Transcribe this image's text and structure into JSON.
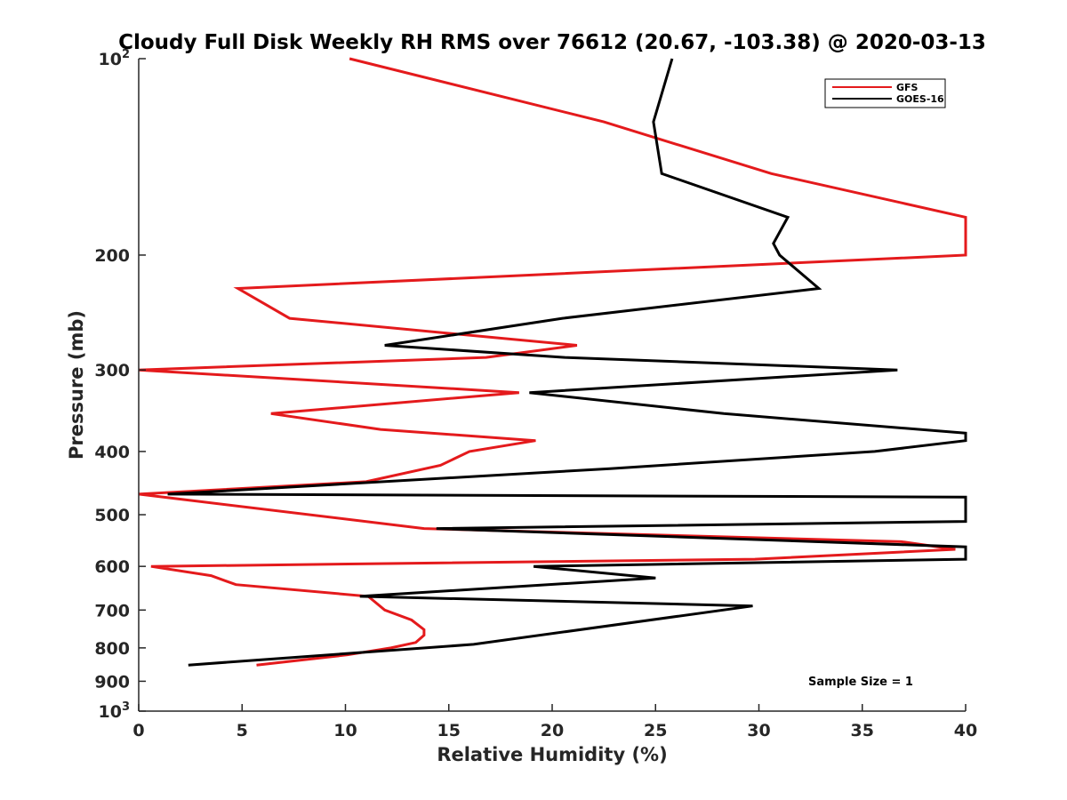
{
  "chart_data": {
    "type": "line",
    "title": "Cloudy Full Disk Weekly RH RMS over 76612 (20.67, -103.38) @ 2020-03-13",
    "xlabel": "Relative Humidity (%)",
    "ylabel": "Pressure (mb)",
    "xlim": [
      0,
      40
    ],
    "ylim": [
      100,
      1000
    ],
    "yscale": "log",
    "y_reversed": true,
    "x_ticks": [
      "0",
      "5",
      "10",
      "15",
      "20",
      "25",
      "30",
      "35",
      "40"
    ],
    "y_ticks": [
      {
        "value": 100,
        "base": "10",
        "exp": "2"
      },
      {
        "value": 200,
        "label": "200"
      },
      {
        "value": 300,
        "label": "300"
      },
      {
        "value": 400,
        "label": "400"
      },
      {
        "value": 500,
        "label": "500"
      },
      {
        "value": 600,
        "label": "600"
      },
      {
        "value": 700,
        "label": "700"
      },
      {
        "value": 800,
        "label": "800"
      },
      {
        "value": 900,
        "label": "900"
      },
      {
        "value": 1000,
        "base": "10",
        "exp": "3"
      }
    ],
    "legend": {
      "location": "top-right",
      "entries": [
        "GFS",
        "GOES-16"
      ]
    },
    "annotation": "Sample Size = 1",
    "series": [
      {
        "name": "GFS",
        "color": "#e41a1c",
        "points": [
          [
            10.2,
            100
          ],
          [
            22.5,
            125
          ],
          [
            30.6,
            150
          ],
          [
            40,
            175
          ],
          [
            40,
            200
          ],
          [
            4.8,
            225
          ],
          [
            7.3,
            250
          ],
          [
            21.2,
            275
          ],
          [
            16.8,
            287
          ],
          [
            0,
            300
          ],
          [
            18.4,
            325
          ],
          [
            6.4,
            350
          ],
          [
            11.7,
            370
          ],
          [
            19.2,
            385
          ],
          [
            16.0,
            400
          ],
          [
            14.6,
            420
          ],
          [
            11.0,
            445
          ],
          [
            0,
            465
          ],
          [
            13.8,
            525
          ],
          [
            36.9,
            550
          ],
          [
            39.5,
            565
          ],
          [
            29.8,
            585
          ],
          [
            0.6,
            600
          ],
          [
            3.5,
            620
          ],
          [
            4.7,
            640
          ],
          [
            11.1,
            667
          ],
          [
            11.9,
            700
          ],
          [
            13.2,
            725
          ],
          [
            13.8,
            750
          ],
          [
            13.8,
            765
          ],
          [
            13.4,
            785
          ],
          [
            12.2,
            800
          ],
          [
            10.1,
            820
          ],
          [
            5.7,
            850
          ]
        ]
      },
      {
        "name": "GOES-16",
        "color": "#000000",
        "points": [
          [
            25.8,
            100
          ],
          [
            24.9,
            125
          ],
          [
            25.3,
            150
          ],
          [
            31.4,
            175
          ],
          [
            30.7,
            192
          ],
          [
            31.0,
            200
          ],
          [
            32.9,
            225
          ],
          [
            20.5,
            250
          ],
          [
            11.9,
            275
          ],
          [
            20.6,
            287
          ],
          [
            36.7,
            300
          ],
          [
            18.9,
            325
          ],
          [
            28.3,
            350
          ],
          [
            40,
            375
          ],
          [
            40,
            385
          ],
          [
            35.6,
            400
          ],
          [
            22.8,
            425
          ],
          [
            1.4,
            465
          ],
          [
            40,
            470
          ],
          [
            40,
            512
          ],
          [
            14.4,
            525
          ],
          [
            40,
            560
          ],
          [
            40,
            585
          ],
          [
            19.1,
            600
          ],
          [
            25.0,
            625
          ],
          [
            10.7,
            667
          ],
          [
            29.7,
            690
          ],
          [
            16.2,
            790
          ],
          [
            2.4,
            850
          ]
        ]
      }
    ]
  }
}
